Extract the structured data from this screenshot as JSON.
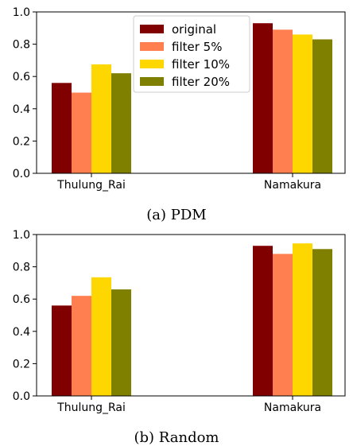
{
  "chart_data": [
    {
      "type": "bar",
      "caption": "(a) PDM",
      "categories": [
        "Thulung_Rai",
        "Namakura"
      ],
      "series": [
        {
          "name": "original",
          "color": "#800000",
          "values": [
            0.56,
            0.93
          ]
        },
        {
          "name": "filter 5%",
          "color": "#ff7f50",
          "values": [
            0.5,
            0.89
          ]
        },
        {
          "name": "filter 10%",
          "color": "#ffd700",
          "values": [
            0.675,
            0.86
          ]
        },
        {
          "name": "filter 20%",
          "color": "#808000",
          "values": [
            0.62,
            0.83
          ]
        }
      ],
      "ylim": [
        0,
        1.0
      ],
      "yticks": [
        "0.0",
        "0.2",
        "0.4",
        "0.6",
        "0.8",
        "1.0"
      ],
      "legend": "top-center",
      "grid": false
    },
    {
      "type": "bar",
      "caption": "(b) Random",
      "categories": [
        "Thulung_Rai",
        "Namakura"
      ],
      "series": [
        {
          "name": "original",
          "color": "#800000",
          "values": [
            0.56,
            0.93
          ]
        },
        {
          "name": "filter 5%",
          "color": "#ff7f50",
          "values": [
            0.62,
            0.88
          ]
        },
        {
          "name": "filter 10%",
          "color": "#ffd700",
          "values": [
            0.735,
            0.945
          ]
        },
        {
          "name": "filter 20%",
          "color": "#808000",
          "values": [
            0.66,
            0.91
          ]
        }
      ],
      "ylim": [
        0,
        1.0
      ],
      "yticks": [
        "0.0",
        "0.2",
        "0.4",
        "0.6",
        "0.8",
        "1.0"
      ],
      "legend": "none",
      "grid": false
    }
  ]
}
